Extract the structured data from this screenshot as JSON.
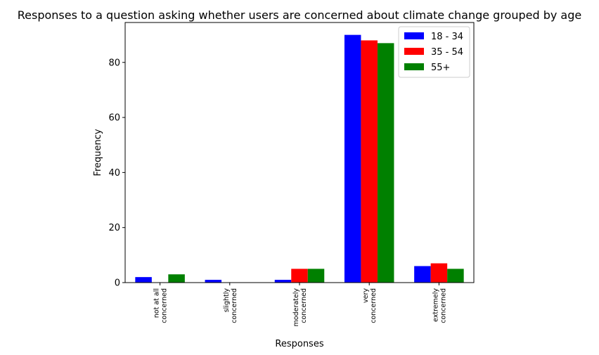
{
  "chart_data": {
    "type": "bar",
    "title": "Responses to a question asking whether users are concerned about climate change grouped by age",
    "xlabel": "Responses",
    "ylabel": "Frequency",
    "categories": [
      [
        "not at all",
        "concerned"
      ],
      [
        "slightly",
        "concerned"
      ],
      [
        "moderately",
        "concerned"
      ],
      [
        "very",
        "concerned"
      ],
      [
        "extremely",
        "concerned"
      ]
    ],
    "series": [
      {
        "name": "18 - 34",
        "color": "#0000ff",
        "values": [
          2,
          1,
          1,
          90,
          6
        ]
      },
      {
        "name": "35 - 54",
        "color": "#ff0000",
        "values": [
          0,
          0,
          5,
          88,
          7
        ]
      },
      {
        "name": "55+",
        "color": "#008000",
        "values": [
          3,
          0,
          5,
          87,
          5
        ]
      }
    ],
    "ylim": [
      0,
      94.5
    ],
    "yticks": [
      0,
      20,
      40,
      60,
      80
    ],
    "legend": "top-right",
    "grid": false
  }
}
